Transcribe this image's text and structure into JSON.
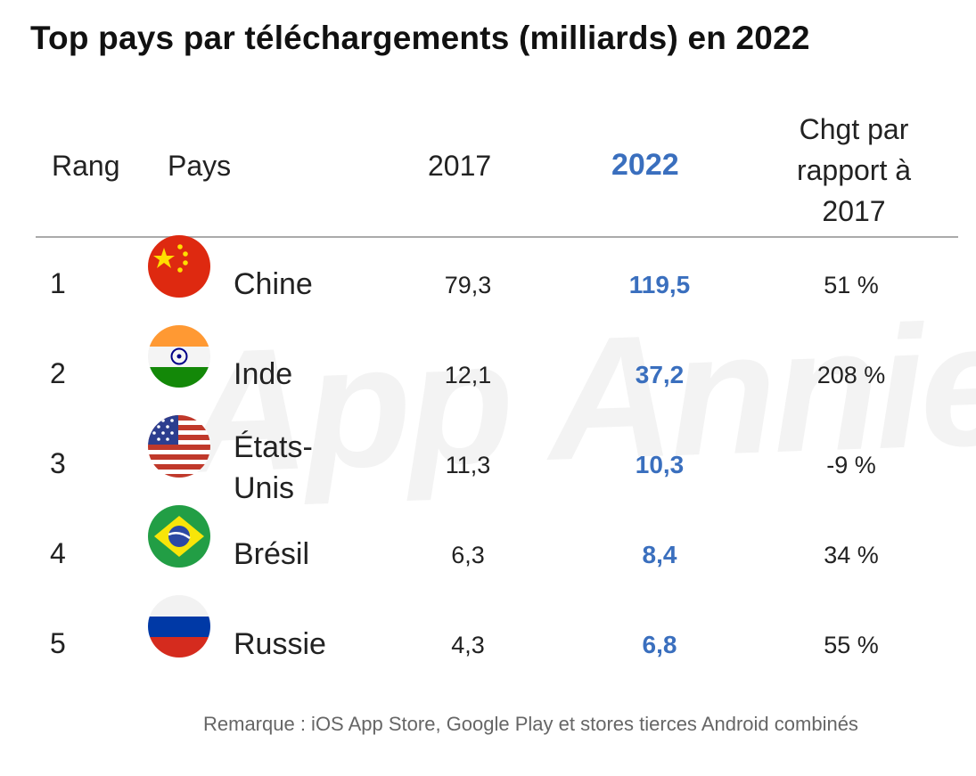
{
  "title": "Top pays par téléchargements (milliards) en 2022",
  "watermark": "App Annie",
  "header": {
    "rank": "Rang",
    "country": "Pays",
    "year_2017": "2017",
    "year_2022": "2022",
    "change_line1": "Chgt par",
    "change_line2": "rapport à",
    "change_line3": "2017"
  },
  "accent_color": "#3a6fbe",
  "rows": [
    {
      "rank": "1",
      "country": "Chine",
      "flag": "china-flag-icon",
      "v2017": "79,3",
      "v2022": "119,5",
      "change": "51 %"
    },
    {
      "rank": "2",
      "country": "Inde",
      "flag": "india-flag-icon",
      "v2017": "12,1",
      "v2022": "37,2",
      "change": "208 %"
    },
    {
      "rank": "3",
      "country": "États-Unis",
      "flag": "usa-flag-icon",
      "v2017": "11,3",
      "v2022": "10,3",
      "change": "-9 %"
    },
    {
      "rank": "4",
      "country": "Brésil",
      "flag": "brazil-flag-icon",
      "v2017": "6,3",
      "v2022": "8,4",
      "change": "34 %"
    },
    {
      "rank": "5",
      "country": "Russie",
      "flag": "russia-flag-icon",
      "v2017": "4,3",
      "v2022": "6,8",
      "change": "55 %"
    }
  ],
  "note": "Remarque : iOS App Store, Google Play et stores tierces Android combinés",
  "chart_data": {
    "type": "table",
    "title": "Top pays par téléchargements (milliards) en 2022",
    "columns": [
      "Rang",
      "Pays",
      "2017",
      "2022",
      "Chgt par rapport à 2017"
    ],
    "rows": [
      [
        1,
        "Chine",
        79.3,
        119.5,
        51
      ],
      [
        2,
        "Inde",
        12.1,
        37.2,
        208
      ],
      [
        3,
        "États-Unis",
        11.3,
        10.3,
        -9
      ],
      [
        4,
        "Brésil",
        6.3,
        8.4,
        34
      ],
      [
        5,
        "Russie",
        4.3,
        6.8,
        55
      ]
    ]
  }
}
